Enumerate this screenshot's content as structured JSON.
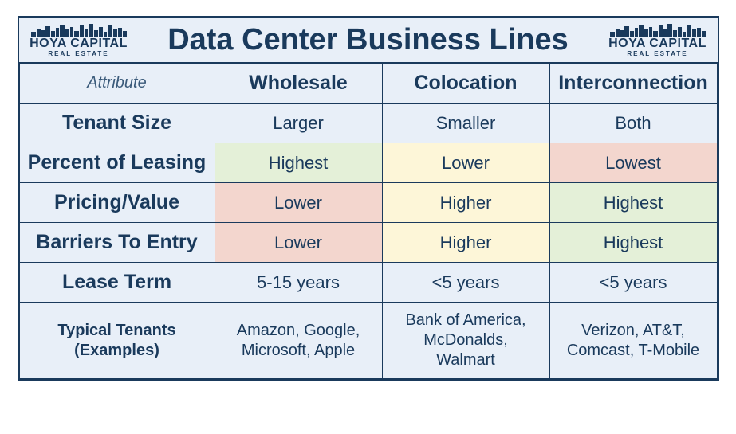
{
  "brand": {
    "main": "HOYA CAPITAL",
    "sub": "REAL ESTATE"
  },
  "title": "Data Center Business Lines",
  "table": {
    "type": "table",
    "attribute_header": "Attribute",
    "columns": [
      "Wholesale",
      "Colocation",
      "Interconnection"
    ],
    "column_widths_pct": [
      28,
      24,
      24,
      24
    ],
    "colors": {
      "border": "#1a3a5c",
      "page_bg": "#e8eff8",
      "text": "#1a3a5c",
      "highlight_green": "#e4f0d8",
      "highlight_yellow": "#fdf6d8",
      "highlight_red": "#f3d6ce"
    },
    "fonts": {
      "title_pt": 38,
      "header_pt": 25,
      "body_pt": 22,
      "attr_header_pt": 20,
      "family": "Arial"
    },
    "rows": [
      {
        "label": "Tenant Size",
        "cells": [
          {
            "value": "Larger",
            "bg": null
          },
          {
            "value": "Smaller",
            "bg": null
          },
          {
            "value": "Both",
            "bg": null
          }
        ]
      },
      {
        "label": "Percent of Leasing",
        "cells": [
          {
            "value": "Highest",
            "bg": "green"
          },
          {
            "value": "Lower",
            "bg": "yellow"
          },
          {
            "value": "Lowest",
            "bg": "red"
          }
        ]
      },
      {
        "label": "Pricing/Value",
        "cells": [
          {
            "value": "Lower",
            "bg": "red"
          },
          {
            "value": "Higher",
            "bg": "yellow"
          },
          {
            "value": "Highest",
            "bg": "green"
          }
        ]
      },
      {
        "label": "Barriers To Entry",
        "cells": [
          {
            "value": "Lower",
            "bg": "red"
          },
          {
            "value": "Higher",
            "bg": "yellow"
          },
          {
            "value": "Highest",
            "bg": "green"
          }
        ]
      },
      {
        "label": "Lease Term",
        "cells": [
          {
            "value": "5-15 years",
            "bg": null
          },
          {
            "value": "<5 years",
            "bg": null
          },
          {
            "value": "<5 years",
            "bg": null
          }
        ]
      },
      {
        "label": "Typical Tenants (Examples)",
        "label_multiline": [
          "Typical Tenants",
          "(Examples)"
        ],
        "cells": [
          {
            "value_multiline": [
              "Amazon, Google,",
              "Microsoft, Apple"
            ],
            "bg": null
          },
          {
            "value_multiline": [
              "Bank of America,",
              "McDonalds,",
              "Walmart"
            ],
            "bg": null
          },
          {
            "value_multiline": [
              "Verizon, AT&T,",
              "Comcast, T-Mobile"
            ],
            "bg": null
          }
        ]
      }
    ]
  }
}
